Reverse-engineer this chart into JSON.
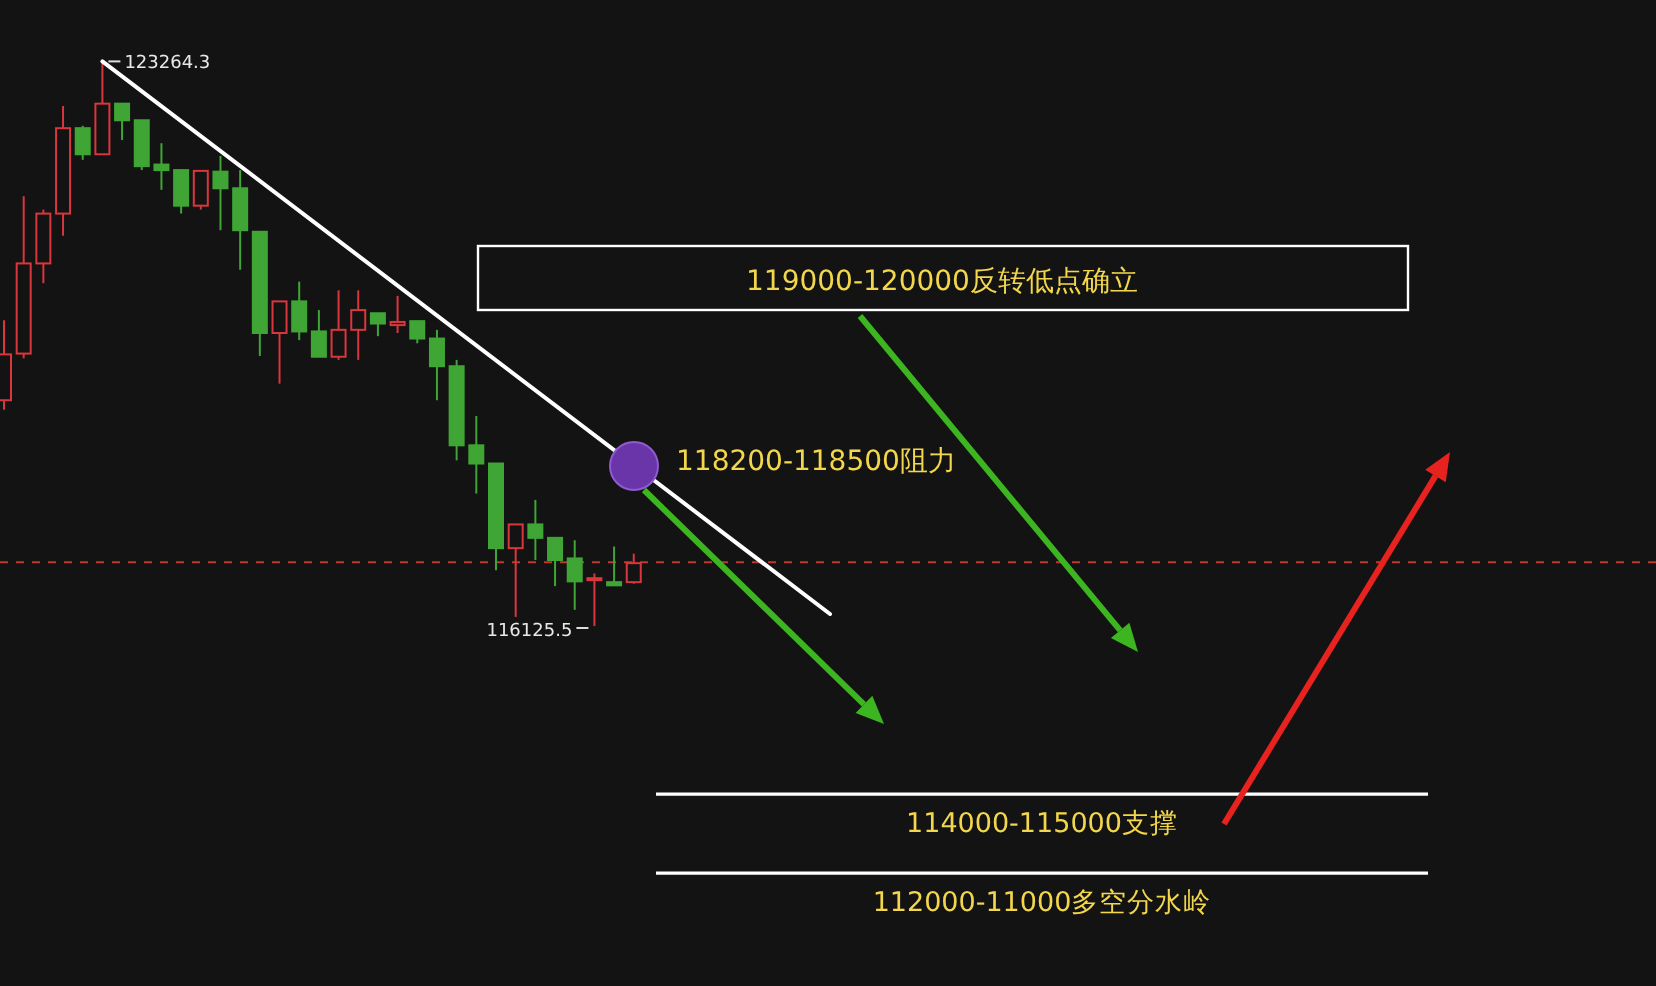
{
  "chart_data": {
    "type": "candlestick",
    "categories": [
      null,
      null,
      null,
      null,
      null,
      null,
      null,
      null,
      null,
      null,
      null,
      null,
      null,
      null,
      null,
      null,
      null,
      null,
      null,
      null,
      null,
      null,
      null,
      null,
      null,
      null,
      null,
      null,
      null,
      null,
      null,
      null,
      null
    ],
    "ohlc": [
      [
        118980,
        119990,
        118860,
        119560
      ],
      [
        119570,
        121560,
        119510,
        120710
      ],
      [
        120710,
        121390,
        120460,
        121340
      ],
      [
        121340,
        122700,
        121060,
        122420
      ],
      [
        122420,
        122450,
        122020,
        122090
      ],
      [
        122090,
        123264.3,
        122090,
        122730
      ],
      [
        122730,
        122730,
        122270,
        122520
      ],
      [
        122520,
        122520,
        121890,
        121940
      ],
      [
        121960,
        122230,
        121640,
        121890
      ],
      [
        121890,
        121890,
        121340,
        121440
      ],
      [
        121440,
        121890,
        121390,
        121880
      ],
      [
        121870,
        122070,
        121130,
        121660
      ],
      [
        121660,
        121890,
        120630,
        121130
      ],
      [
        121110,
        121110,
        119540,
        119830
      ],
      [
        119830,
        120230,
        119190,
        120230
      ],
      [
        120230,
        120480,
        119740,
        119850
      ],
      [
        119850,
        120120,
        119530,
        119530
      ],
      [
        119530,
        120370,
        119490,
        119870
      ],
      [
        119870,
        120370,
        119490,
        120120
      ],
      [
        120080,
        120080,
        119790,
        119950
      ],
      [
        119930,
        120300,
        119830,
        119970
      ],
      [
        119980,
        119980,
        119700,
        119760
      ],
      [
        119760,
        119870,
        118980,
        119410
      ],
      [
        119410,
        119490,
        118220,
        118410
      ],
      [
        118410,
        118780,
        117800,
        118180
      ],
      [
        118180,
        118180,
        116830,
        117110
      ],
      [
        117110,
        117410,
        116240,
        117410
      ],
      [
        117410,
        117720,
        116960,
        117240
      ],
      [
        117240,
        117240,
        116630,
        116960
      ],
      [
        116980,
        117210,
        116330,
        116690
      ],
      [
        116710,
        116790,
        116125.5,
        116730
      ],
      [
        116680,
        117130,
        116630,
        116640
      ],
      [
        116680,
        117040,
        116660,
        116920
      ]
    ],
    "ref_lines": [
      {
        "axis": "y",
        "value": 114000,
        "label": "114000-115000支撑",
        "color": "#ffffff"
      },
      {
        "axis": "y",
        "value": 113000,
        "label": "112000-11000多空分水岭",
        "color": "#ffffff"
      },
      {
        "axis": "y",
        "value": 116930,
        "color": "#c0392b",
        "line_style": "dashed"
      }
    ],
    "annotations": [
      "123264.3",
      "116125.5",
      "119000-120000反转低点确立",
      "118200-118500阻力"
    ]
  }
}
